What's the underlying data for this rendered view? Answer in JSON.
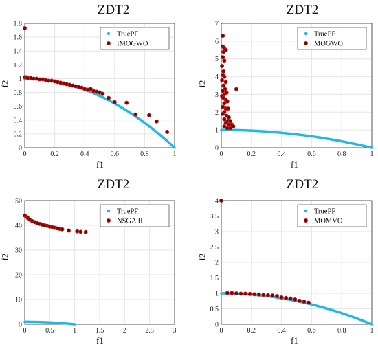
{
  "colors": {
    "true_pf": "#1FB8E8",
    "points_fill": "#6A0A0A",
    "points_stroke": "#E01818",
    "grid": "#E6E6E6",
    "axis": "#333333"
  },
  "chart_data": [
    {
      "type": "scatter",
      "title": "ZDT2",
      "xlabel": "f1",
      "ylabel": "f2",
      "xlim": [
        0,
        1
      ],
      "ylim": [
        0,
        1.8
      ],
      "xticks": [
        0,
        0.2,
        0.4,
        0.6,
        0.8,
        1
      ],
      "yticks": [
        0,
        0.2,
        0.4,
        0.6,
        0.8,
        1,
        1.2,
        1.4,
        1.6,
        1.8
      ],
      "grid": true,
      "legend_position": "top-right",
      "series": [
        {
          "name": "TruePF",
          "kind": "curve"
        },
        {
          "name": "IMOGWO",
          "kind": "points",
          "points": [
            [
              0.0,
              1.73
            ],
            [
              0.0,
              1.02
            ],
            [
              0.01,
              1.02
            ],
            [
              0.02,
              1.01
            ],
            [
              0.04,
              1.01
            ],
            [
              0.06,
              1.0
            ],
            [
              0.08,
              1.0
            ],
            [
              0.1,
              0.99
            ],
            [
              0.12,
              0.99
            ],
            [
              0.14,
              0.98
            ],
            [
              0.16,
              0.97
            ],
            [
              0.18,
              0.97
            ],
            [
              0.2,
              0.96
            ],
            [
              0.22,
              0.95
            ],
            [
              0.24,
              0.94
            ],
            [
              0.26,
              0.93
            ],
            [
              0.28,
              0.92
            ],
            [
              0.3,
              0.91
            ],
            [
              0.32,
              0.9
            ],
            [
              0.34,
              0.89
            ],
            [
              0.36,
              0.88
            ],
            [
              0.38,
              0.87
            ],
            [
              0.4,
              0.85
            ],
            [
              0.42,
              0.84
            ],
            [
              0.44,
              0.85
            ],
            [
              0.46,
              0.82
            ],
            [
              0.48,
              0.81
            ],
            [
              0.5,
              0.8
            ],
            [
              0.52,
              0.78
            ],
            [
              0.56,
              0.72
            ],
            [
              0.6,
              0.66
            ],
            [
              0.68,
              0.65
            ],
            [
              0.74,
              0.48
            ],
            [
              0.83,
              0.47
            ],
            [
              0.88,
              0.38
            ],
            [
              0.95,
              0.23
            ]
          ]
        }
      ]
    },
    {
      "type": "scatter",
      "title": "ZDT2",
      "xlabel": "f1",
      "ylabel": "f2",
      "xlim": [
        0,
        1
      ],
      "ylim": [
        0,
        7
      ],
      "xticks": [
        0,
        0.2,
        0.4,
        0.6,
        0.8,
        1
      ],
      "yticks": [
        0,
        1,
        2,
        3,
        4,
        5,
        6,
        7
      ],
      "grid": true,
      "legend_position": "top-right",
      "series": [
        {
          "name": "TruePF",
          "kind": "curve"
        },
        {
          "name": "MOGWO",
          "kind": "points",
          "points": [
            [
              0.01,
              6.3
            ],
            [
              0.01,
              5.7
            ],
            [
              0.02,
              5.6
            ],
            [
              0.015,
              5.4
            ],
            [
              0.03,
              5.5
            ],
            [
              0.01,
              5.1
            ],
            [
              0.02,
              4.9
            ],
            [
              0.005,
              4.6
            ],
            [
              0.015,
              4.3
            ],
            [
              0.01,
              4.1
            ],
            [
              0.02,
              4.0
            ],
            [
              0.005,
              3.8
            ],
            [
              0.03,
              3.7
            ],
            [
              0.015,
              3.5
            ],
            [
              0.025,
              3.3
            ],
            [
              0.01,
              3.2
            ],
            [
              0.02,
              3.0
            ],
            [
              0.035,
              3.1
            ],
            [
              0.005,
              2.9
            ],
            [
              0.015,
              2.8
            ],
            [
              0.03,
              2.7
            ],
            [
              0.04,
              2.6
            ],
            [
              0.02,
              2.5
            ],
            [
              0.01,
              2.3
            ],
            [
              0.03,
              2.2
            ],
            [
              0.045,
              2.2
            ],
            [
              0.02,
              2.0
            ],
            [
              0.01,
              1.9
            ],
            [
              0.035,
              1.8
            ],
            [
              0.05,
              1.7
            ],
            [
              0.02,
              1.6
            ],
            [
              0.04,
              1.5
            ],
            [
              0.06,
              1.5
            ],
            [
              0.03,
              1.4
            ],
            [
              0.05,
              1.3
            ],
            [
              0.07,
              1.3
            ],
            [
              0.02,
              1.2
            ],
            [
              0.04,
              1.1
            ],
            [
              0.06,
              1.1
            ],
            [
              0.08,
              1.2
            ],
            [
              0.1,
              3.3
            ]
          ]
        }
      ]
    },
    {
      "type": "scatter",
      "title": "ZDT2",
      "xlabel": "f1",
      "ylabel": "f2",
      "xlim": [
        0,
        3
      ],
      "ylim": [
        0,
        50
      ],
      "xticks": [
        0,
        0.5,
        1,
        1.5,
        2,
        2.5,
        3
      ],
      "yticks": [
        0,
        10,
        20,
        30,
        40,
        50
      ],
      "grid": true,
      "legend_position": "top-right",
      "series": [
        {
          "name": "TruePF",
          "kind": "curve"
        },
        {
          "name": "NSGA II",
          "kind": "points",
          "points": [
            [
              0.0,
              44.0
            ],
            [
              0.03,
              43.5
            ],
            [
              0.06,
              43.0
            ],
            [
              0.1,
              42.3
            ],
            [
              0.15,
              41.7
            ],
            [
              0.2,
              41.3
            ],
            [
              0.25,
              40.9
            ],
            [
              0.3,
              40.6
            ],
            [
              0.35,
              40.3
            ],
            [
              0.4,
              40.0
            ],
            [
              0.45,
              39.8
            ],
            [
              0.5,
              39.5
            ],
            [
              0.55,
              39.3
            ],
            [
              0.6,
              39.0
            ],
            [
              0.65,
              38.8
            ],
            [
              0.7,
              38.6
            ],
            [
              0.75,
              38.4
            ],
            [
              0.88,
              37.9
            ],
            [
              1.05,
              37.6
            ],
            [
              1.12,
              37.4
            ],
            [
              1.22,
              37.3
            ],
            [
              1.79,
              44.5
            ]
          ]
        }
      ]
    },
    {
      "type": "scatter",
      "title": "ZDT2",
      "xlabel": "f1",
      "ylabel": "f2",
      "xlim": [
        0,
        1
      ],
      "ylim": [
        0,
        4
      ],
      "xticks": [
        0,
        0.2,
        0.4,
        0.6,
        0.8,
        1
      ],
      "yticks": [
        0,
        0.5,
        1,
        1.5,
        2,
        2.5,
        3,
        3.5,
        4
      ],
      "grid": true,
      "legend_position": "top-right",
      "series": [
        {
          "name": "TruePF",
          "kind": "curve"
        },
        {
          "name": "MOMVO",
          "kind": "points",
          "points": [
            [
              0.0,
              4.0
            ],
            [
              0.04,
              1.01
            ],
            [
              0.07,
              1.01
            ],
            [
              0.1,
              1.0
            ],
            [
              0.13,
              0.99
            ],
            [
              0.16,
              0.99
            ],
            [
              0.19,
              0.98
            ],
            [
              0.22,
              0.97
            ],
            [
              0.25,
              0.96
            ],
            [
              0.28,
              0.95
            ],
            [
              0.31,
              0.94
            ],
            [
              0.34,
              0.93
            ],
            [
              0.37,
              0.91
            ],
            [
              0.4,
              0.87
            ],
            [
              0.43,
              0.85
            ],
            [
              0.46,
              0.83
            ],
            [
              0.49,
              0.8
            ],
            [
              0.52,
              0.76
            ],
            [
              0.55,
              0.73
            ],
            [
              0.58,
              0.7
            ]
          ]
        }
      ]
    }
  ]
}
